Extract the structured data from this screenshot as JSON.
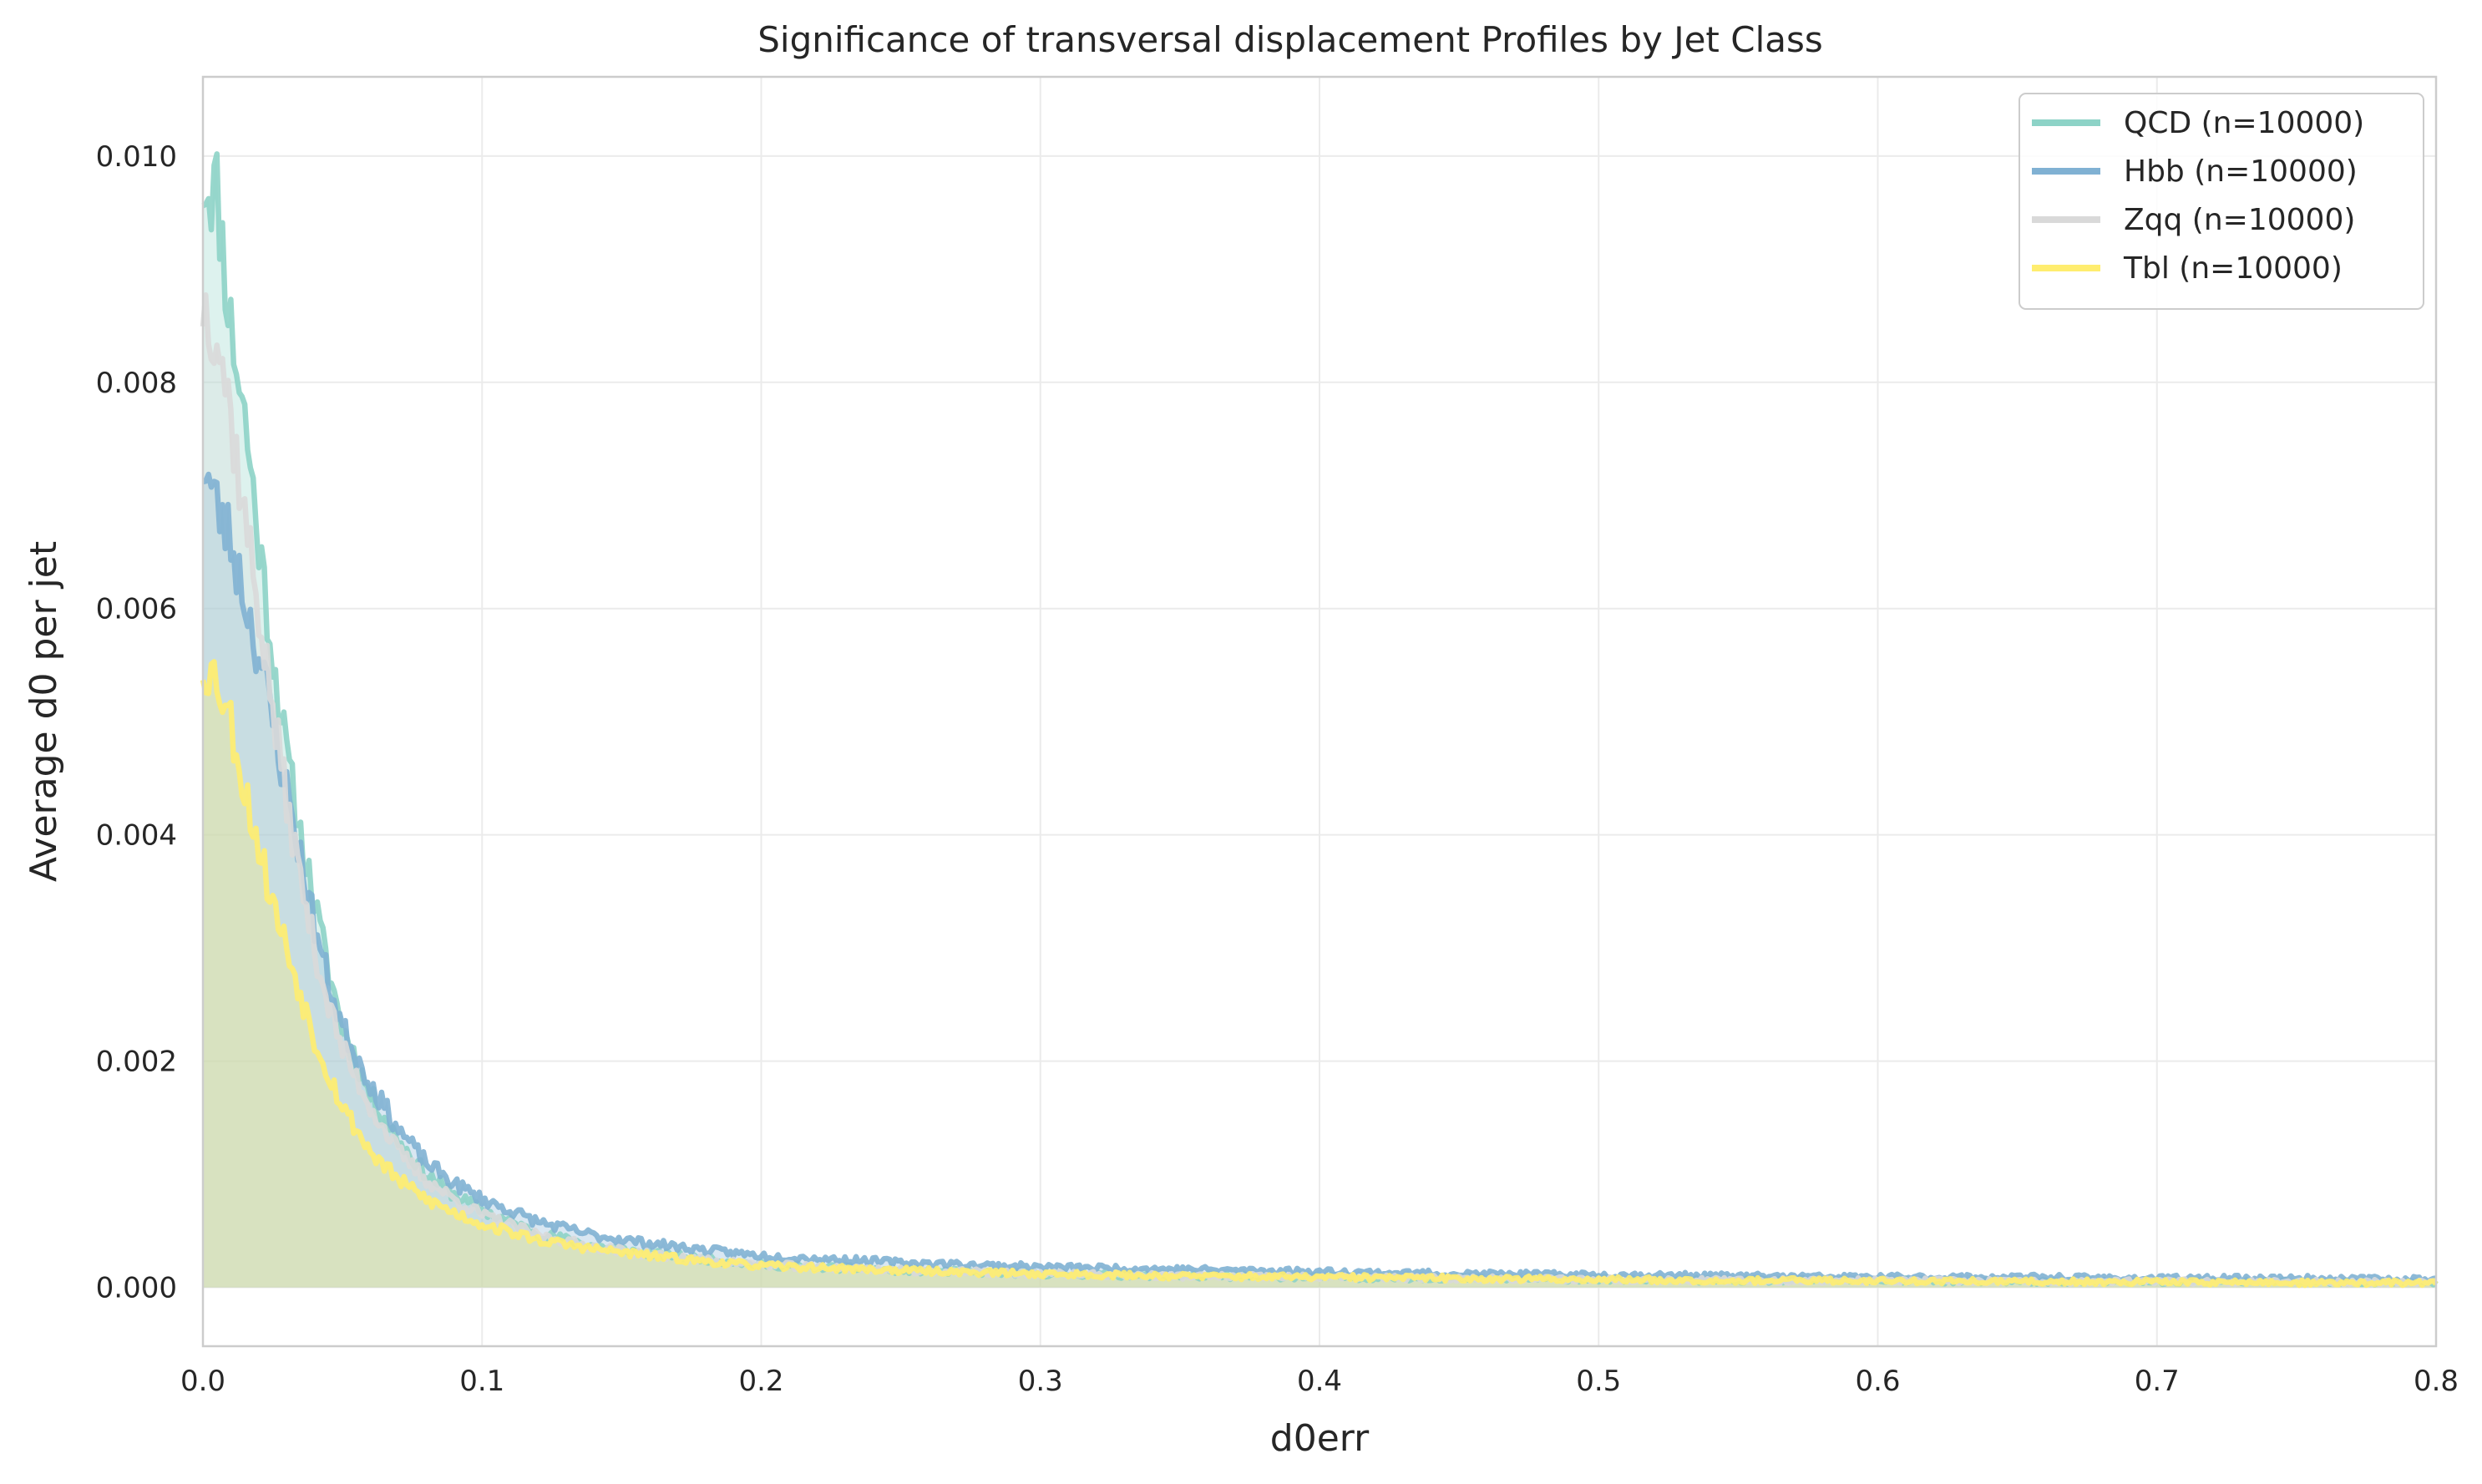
{
  "chart_data": {
    "type": "area",
    "title": "Significance of transversal displacement Profiles by Jet Class",
    "xlabel": "d0err",
    "ylabel": "Average d0 per jet",
    "xlim": [
      0.0,
      0.8
    ],
    "ylim": [
      -0.00052,
      0.0107
    ],
    "xticks": [
      0.0,
      0.1,
      0.2,
      0.3,
      0.4,
      0.5,
      0.6,
      0.7,
      0.8
    ],
    "xtick_labels": [
      "0.0",
      "0.1",
      "0.2",
      "0.3",
      "0.4",
      "0.5",
      "0.6",
      "0.7",
      "0.8"
    ],
    "yticks": [
      0.0,
      0.002,
      0.004,
      0.006,
      0.008,
      0.01
    ],
    "ytick_labels": [
      "0.000",
      "0.002",
      "0.004",
      "0.006",
      "0.008",
      "0.010"
    ],
    "grid": true,
    "legend_position": "top-right",
    "x": [
      0.0,
      0.005,
      0.01,
      0.015,
      0.02,
      0.025,
      0.03,
      0.035,
      0.04,
      0.045,
      0.05,
      0.06,
      0.07,
      0.08,
      0.09,
      0.1,
      0.12,
      0.14,
      0.16,
      0.18,
      0.2,
      0.25,
      0.3,
      0.35,
      0.4,
      0.45,
      0.5,
      0.55,
      0.6,
      0.65,
      0.7,
      0.75,
      0.8
    ],
    "series": [
      {
        "name": "QCD (n=10000)",
        "color": "#8dd3c7",
        "values": [
          0.0098,
          0.0097,
          0.0085,
          0.0077,
          0.0066,
          0.0056,
          0.0047,
          0.004,
          0.0034,
          0.0028,
          0.0023,
          0.0017,
          0.0013,
          0.001,
          0.00082,
          0.00068,
          0.00048,
          0.00037,
          0.0003,
          0.00025,
          0.0002,
          0.00015,
          0.00012,
          0.0001,
          9e-05,
          8e-05,
          7e-05,
          6e-05,
          6e-05,
          5e-05,
          5e-05,
          5e-05,
          4e-05
        ]
      },
      {
        "name": "Hbb (n=10000)",
        "color": "#80b1d3",
        "values": [
          0.0073,
          0.0069,
          0.0066,
          0.0061,
          0.0056,
          0.005,
          0.0044,
          0.0038,
          0.0032,
          0.0027,
          0.0023,
          0.0018,
          0.0014,
          0.0011,
          0.00092,
          0.00078,
          0.00058,
          0.00046,
          0.00039,
          0.00033,
          0.00028,
          0.00022,
          0.00018,
          0.00016,
          0.00014,
          0.00012,
          0.00011,
          0.0001,
          9e-05,
          9e-05,
          8e-05,
          8e-05,
          7e-05
        ]
      },
      {
        "name": "Zqq (n=10000)",
        "color": "#d9d9d9",
        "values": [
          0.0087,
          0.0085,
          0.0077,
          0.0068,
          0.006,
          0.0051,
          0.0043,
          0.0036,
          0.003,
          0.0025,
          0.0021,
          0.0016,
          0.0012,
          0.00095,
          0.00078,
          0.00064,
          0.00046,
          0.00036,
          0.00029,
          0.00024,
          0.0002,
          0.00015,
          0.00012,
          0.0001,
          9e-05,
          8e-05,
          7e-05,
          6e-05,
          6e-05,
          5e-05,
          5e-05,
          5e-05,
          4e-05
        ]
      },
      {
        "name": "Tbl (n=10000)",
        "color": "#ffed6f",
        "values": [
          0.0055,
          0.0054,
          0.005,
          0.0044,
          0.0039,
          0.0034,
          0.003,
          0.0026,
          0.0022,
          0.0019,
          0.0016,
          0.0012,
          0.00095,
          0.00078,
          0.00066,
          0.00056,
          0.00042,
          0.00034,
          0.00028,
          0.00023,
          0.00019,
          0.00015,
          0.00012,
          0.0001,
          9e-05,
          8e-05,
          7e-05,
          6e-05,
          6e-05,
          5e-05,
          5e-05,
          4e-05,
          4e-05
        ]
      }
    ]
  }
}
